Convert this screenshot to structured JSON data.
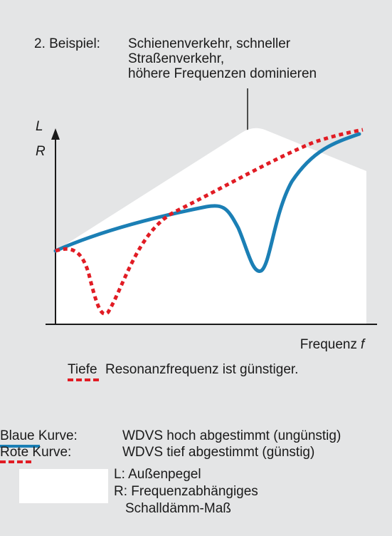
{
  "title": {
    "label": "2. Beispiel:",
    "lines": [
      "Schienenverkehr, schneller",
      "Straßenverkehr,",
      "höhere Frequenzen dominieren"
    ]
  },
  "axes": {
    "y_labels": [
      "L",
      "R"
    ],
    "x_label": "Frequenz",
    "x_symbol": "f"
  },
  "caption": {
    "highlight": "Tiefe",
    "rest": "Resonanzfrequenz ist günstiger."
  },
  "legend": [
    {
      "key": "Blaue Kurve:",
      "text": "WDVS hoch abgestimmt (ungünstig)"
    },
    {
      "key": "Rote Kurve:",
      "text": "WDVS tief abgestimmt (günstig)"
    },
    {
      "lines": [
        "L: Außenpegel",
        "R: Frequenzabhängiges",
        "Schalldämm-Maß"
      ]
    }
  ]
}
